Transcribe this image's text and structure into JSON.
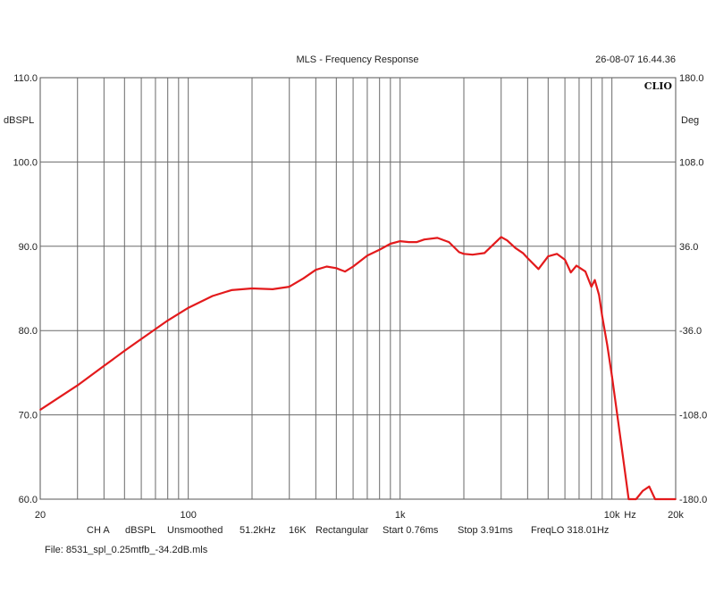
{
  "chart_data": {
    "type": "line",
    "title": "MLS - Frequency Response",
    "timestamp": "26-08-07 16.44.36",
    "brand": "CLIO",
    "x_scale": "log",
    "xlim": [
      20,
      20000
    ],
    "ylim": [
      60,
      110
    ],
    "y2lim": [
      -180,
      180
    ],
    "ylabel": "dBSPL",
    "y2label": "Deg",
    "x_unit_label": "Hz",
    "x_ticks": [
      {
        "value": 20,
        "label": "20"
      },
      {
        "value": 100,
        "label": "100"
      },
      {
        "value": 1000,
        "label": "1k"
      },
      {
        "value": 10000,
        "label": "10k"
      },
      {
        "value": 20000,
        "label": "20k"
      }
    ],
    "y_ticks": [
      {
        "value": 60,
        "label": "60.0"
      },
      {
        "value": 70,
        "label": "70.0"
      },
      {
        "value": 80,
        "label": "80.0"
      },
      {
        "value": 90,
        "label": "90.0"
      },
      {
        "value": 100,
        "label": "100.0"
      },
      {
        "value": 110,
        "label": "110.0"
      }
    ],
    "y2_ticks": [
      {
        "value": -180,
        "label": "-180.0"
      },
      {
        "value": -108,
        "label": "-108.0"
      },
      {
        "value": -36,
        "label": "-36.0"
      },
      {
        "value": 36,
        "label": "36.0"
      },
      {
        "value": 108,
        "label": "108.0"
      },
      {
        "value": 180,
        "label": "180.0"
      }
    ],
    "grid": true,
    "series": [
      {
        "color": "#e31a1c",
        "x": [
          20,
          25,
          30,
          40,
          50,
          60,
          80,
          100,
          130,
          160,
          200,
          250,
          300,
          350,
          400,
          450,
          500,
          550,
          600,
          700,
          800,
          900,
          1000,
          1100,
          1200,
          1300,
          1500,
          1700,
          1900,
          2000,
          2200,
          2500,
          2700,
          3000,
          3200,
          3500,
          3800,
          4000,
          4500,
          5000,
          5500,
          6000,
          6400,
          6800,
          7000,
          7500,
          8000,
          8300,
          8700,
          9000,
          9500,
          10000,
          11000,
          12000,
          13000,
          14000,
          15000,
          16000,
          17000,
          18000,
          20000
        ],
        "y": [
          70.6,
          72.2,
          73.5,
          75.8,
          77.6,
          79.0,
          81.2,
          82.7,
          84.1,
          84.8,
          85.0,
          84.9,
          85.2,
          86.2,
          87.2,
          87.6,
          87.4,
          87.0,
          87.6,
          88.9,
          89.6,
          90.3,
          90.6,
          90.5,
          90.5,
          90.8,
          91.0,
          90.5,
          89.3,
          89.1,
          89.0,
          89.2,
          90.0,
          91.1,
          90.7,
          89.8,
          89.2,
          88.6,
          87.3,
          88.8,
          89.1,
          88.4,
          86.9,
          87.7,
          87.5,
          87.0,
          85.2,
          86.0,
          84.2,
          81.7,
          78.3,
          74.6,
          67.0,
          60.0,
          60.0,
          61.0,
          61.5,
          60.0,
          60.0,
          60.0,
          60.0
        ]
      }
    ]
  },
  "footer": {
    "channel": "CH A",
    "unit": "dBSPL",
    "smoothing": "Unsmoothed",
    "rate": "51.2kHz",
    "size": "16K",
    "window": "Rectangular",
    "start": "Start 0.76ms",
    "stop": "Stop 3.91ms",
    "freqlo": "FreqLO 318.01Hz",
    "file": "File: 8531_spl_0.25mtfb_-34.2dB.mls"
  }
}
